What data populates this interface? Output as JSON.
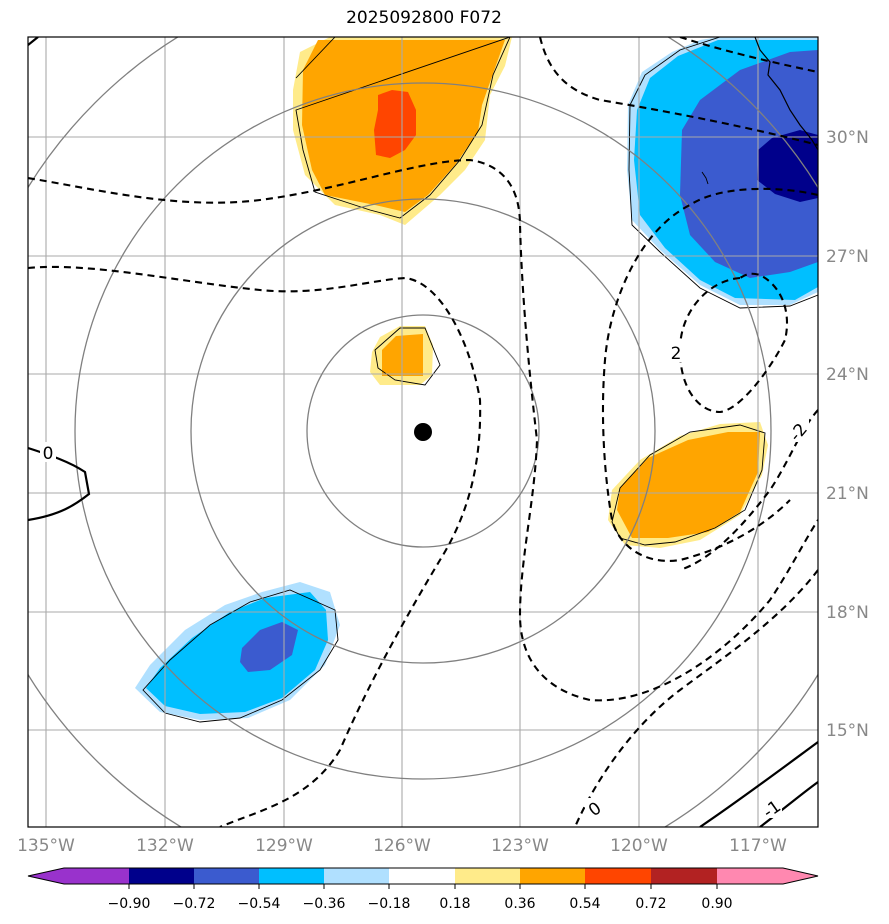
{
  "title": "2025092800 F072",
  "map": {
    "lon_range": [
      -135.5,
      -115.5
    ],
    "lat_range": [
      12.5,
      32.5
    ],
    "lon_ticks": [
      {
        "value": -135,
        "label": "135°W"
      },
      {
        "value": -132,
        "label": "132°W"
      },
      {
        "value": -129,
        "label": "129°W"
      },
      {
        "value": -126,
        "label": "126°W"
      },
      {
        "value": -123,
        "label": "123°W"
      },
      {
        "value": -120,
        "label": "120°W"
      },
      {
        "value": -117,
        "label": "117°W"
      }
    ],
    "lat_ticks": [
      {
        "value": 15,
        "label": "15°N"
      },
      {
        "value": 18,
        "label": "18°N"
      },
      {
        "value": 21,
        "label": "21°N"
      },
      {
        "value": 24,
        "label": "24°N"
      },
      {
        "value": 27,
        "label": "27°N"
      },
      {
        "value": 30,
        "label": "30°N"
      }
    ],
    "storm_center": {
      "lon": -125.5,
      "lat": 22.5
    },
    "range_rings_deg": [
      3,
      6,
      9,
      12
    ],
    "gridlines": true,
    "contour_labels": [
      "0",
      "2",
      "-2",
      "0",
      "-1"
    ]
  },
  "colorbar": {
    "labels": [
      "−0.90",
      "−0.72",
      "−0.54",
      "−0.36",
      "−0.18",
      "0.18",
      "0.36",
      "0.54",
      "0.72",
      "0.90"
    ],
    "colors": [
      "#9932cc",
      "#00008b",
      "#3b5bcf",
      "#00bfff",
      "#b0e0ff",
      "#ffffff",
      "#ffeb8a",
      "#ffa500",
      "#ff4500",
      "#b22222",
      "#ff88b0"
    ]
  }
}
